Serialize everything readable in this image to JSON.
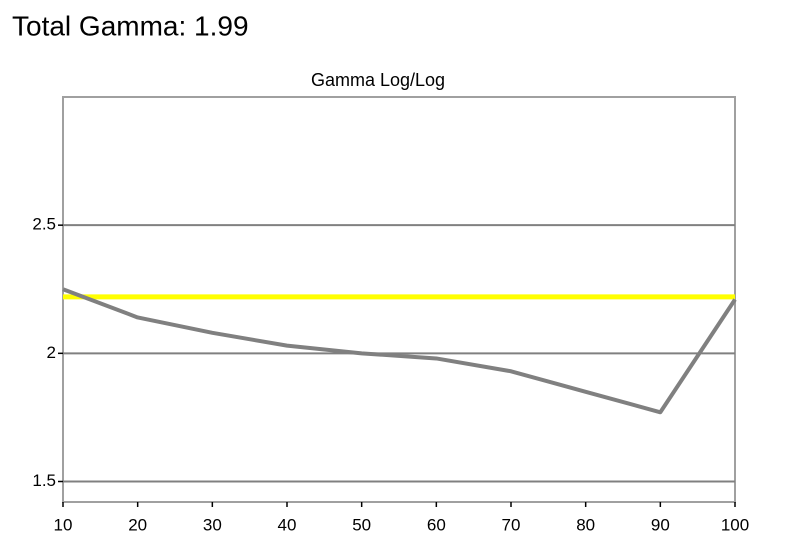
{
  "header": {
    "title": "Total Gamma: 1.99"
  },
  "chart_data": {
    "type": "line",
    "title": "Gamma Log/Log",
    "x": [
      10,
      20,
      30,
      40,
      50,
      60,
      70,
      80,
      90,
      100
    ],
    "series": [
      {
        "color": "#808080",
        "values": [
          2.25,
          2.14,
          2.08,
          2.03,
          2.0,
          1.98,
          1.93,
          1.85,
          1.77,
          2.21
        ]
      }
    ],
    "reference_line": {
      "value": 2.22,
      "color": "#ffff00"
    },
    "xlim": [
      10,
      100
    ],
    "ylim": [
      1.42,
      3.0
    ],
    "xticks": [
      10,
      20,
      30,
      40,
      50,
      60,
      70,
      80,
      90,
      100
    ],
    "yticks": [
      1.5,
      2,
      2.5
    ],
    "grid": true
  }
}
